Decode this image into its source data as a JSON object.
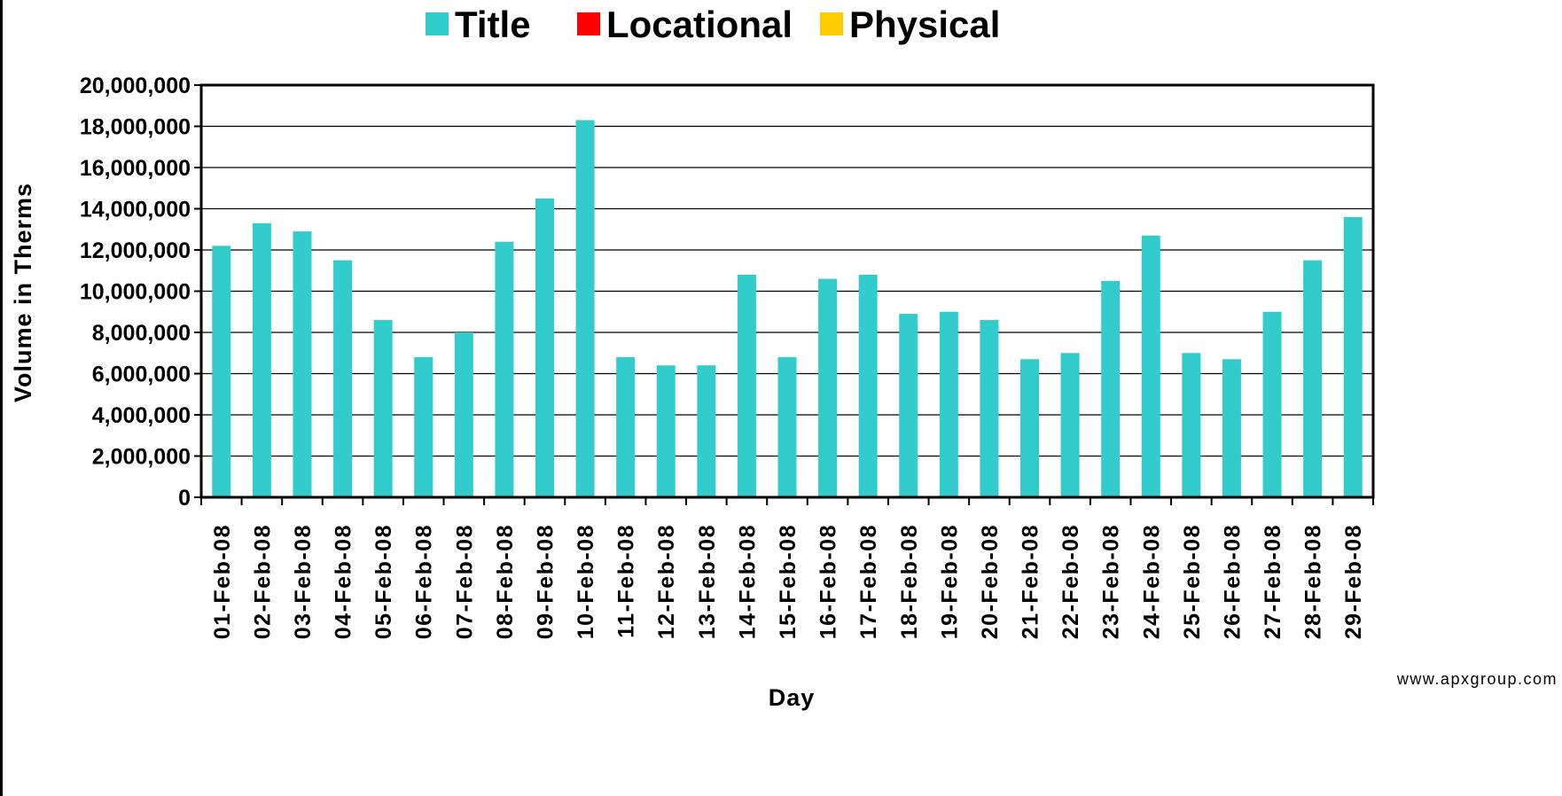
{
  "chart_data": {
    "type": "bar",
    "legend": [
      {
        "label": "Title",
        "color": "#33cccc"
      },
      {
        "label": "Locational",
        "color": "#ff0000"
      },
      {
        "label": "Physical",
        "color": "#ffcc00"
      }
    ],
    "legend_position": "top-center",
    "xlabel": "Day",
    "ylabel": "Volume in Therms",
    "ylim": [
      0,
      20000000
    ],
    "y_ticks": [
      "0",
      "2,000,000",
      "4,000,000",
      "6,000,000",
      "8,000,000",
      "10,000,000",
      "12,000,000",
      "14,000,000",
      "16,000,000",
      "18,000,000",
      "20,000,000"
    ],
    "grid": true,
    "categories": [
      "01-Feb-08",
      "02-Feb-08",
      "03-Feb-08",
      "04-Feb-08",
      "05-Feb-08",
      "06-Feb-08",
      "07-Feb-08",
      "08-Feb-08",
      "09-Feb-08",
      "10-Feb-08",
      "11-Feb-08",
      "12-Feb-08",
      "13-Feb-08",
      "14-Feb-08",
      "15-Feb-08",
      "16-Feb-08",
      "17-Feb-08",
      "18-Feb-08",
      "19-Feb-08",
      "20-Feb-08",
      "21-Feb-08",
      "22-Feb-08",
      "23-Feb-08",
      "24-Feb-08",
      "25-Feb-08",
      "26-Feb-08",
      "27-Feb-08",
      "28-Feb-08",
      "29-Feb-08"
    ],
    "series": [
      {
        "name": "Title",
        "color": "#33cccc",
        "values": [
          12200000,
          13300000,
          12900000,
          11500000,
          8600000,
          6800000,
          8000000,
          12400000,
          14500000,
          18300000,
          6800000,
          6400000,
          6400000,
          10800000,
          6800000,
          10600000,
          10800000,
          8900000,
          9000000,
          8600000,
          6700000,
          7000000,
          10500000,
          12700000,
          7000000,
          6700000,
          9000000,
          11500000,
          13600000
        ]
      },
      {
        "name": "Locational",
        "color": "#ff0000",
        "values": [
          0,
          0,
          0,
          0,
          0,
          0,
          0,
          0,
          0,
          0,
          0,
          0,
          0,
          0,
          0,
          0,
          0,
          0,
          0,
          0,
          0,
          0,
          0,
          0,
          0,
          0,
          0,
          0,
          0
        ]
      },
      {
        "name": "Physical",
        "color": "#ffcc00",
        "values": [
          0,
          0,
          0,
          0,
          0,
          0,
          0,
          0,
          0,
          0,
          0,
          0,
          0,
          0,
          0,
          0,
          0,
          0,
          0,
          0,
          0,
          0,
          0,
          0,
          0,
          0,
          0,
          0,
          0
        ]
      }
    ],
    "watermark": "www.apxgroup.com"
  }
}
